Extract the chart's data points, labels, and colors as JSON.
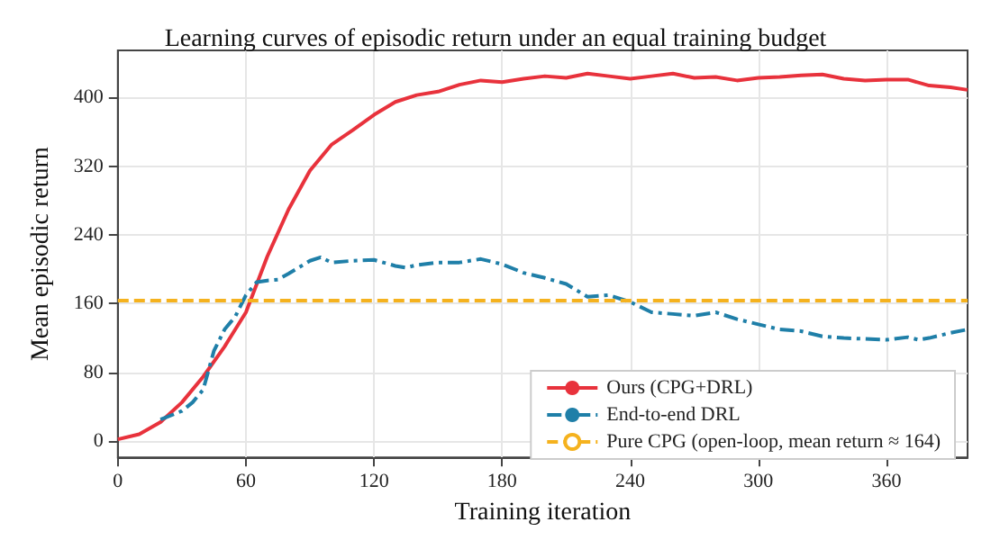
{
  "chart_data": {
    "type": "line",
    "title": "Learning curves of episodic return under an equal training budget",
    "xlabel": "Training iteration",
    "ylabel": "Mean episodic return",
    "xlim": [
      0,
      398
    ],
    "ylim": [
      -19,
      455
    ],
    "xticks": [
      0,
      60,
      120,
      180,
      240,
      300,
      360
    ],
    "yticks": [
      0,
      80,
      160,
      240,
      320,
      400
    ],
    "grid": true,
    "legend": "bottom right",
    "marker": "none",
    "series": [
      {
        "name": "Ours (CPG+DRL)",
        "color": "#e8323c",
        "line_style": "solid",
        "x": [
          0,
          10,
          20,
          30,
          40,
          50,
          60,
          70,
          80,
          90,
          100,
          110,
          120,
          130,
          140,
          150,
          160,
          170,
          180,
          190,
          200,
          210,
          220,
          230,
          240,
          250,
          260,
          270,
          280,
          290,
          300,
          310,
          320,
          330,
          340,
          350,
          360,
          370,
          380,
          390,
          398
        ],
        "values": [
          2,
          8,
          22,
          45,
          75,
          110,
          150,
          215,
          270,
          315,
          345,
          362,
          380,
          395,
          403,
          407,
          415,
          420,
          418,
          422,
          425,
          423,
          428,
          425,
          422,
          425,
          428,
          423,
          424,
          420,
          423,
          424,
          426,
          427,
          422,
          420,
          421,
          421,
          414,
          412,
          409
        ]
      },
      {
        "name": "End-to-end DRL",
        "color": "#1f7fa8",
        "line_style": "dashdot",
        "x": [
          20,
          30,
          35,
          40,
          45,
          50,
          55,
          60,
          65,
          70,
          75,
          80,
          90,
          95,
          100,
          110,
          120,
          130,
          135,
          140,
          150,
          160,
          170,
          180,
          190,
          200,
          210,
          220,
          230,
          240,
          250,
          260,
          270,
          280,
          290,
          300,
          310,
          320,
          330,
          340,
          350,
          360,
          370,
          375,
          380,
          390,
          398
        ],
        "values": [
          25,
          35,
          45,
          60,
          105,
          130,
          145,
          170,
          185,
          187,
          188,
          195,
          210,
          214,
          208,
          210,
          211,
          204,
          202,
          205,
          208,
          208,
          212,
          206,
          196,
          190,
          183,
          168,
          170,
          162,
          150,
          148,
          146,
          150,
          142,
          136,
          130,
          128,
          122,
          120,
          119,
          118,
          121,
          118,
          120,
          126,
          130
        ]
      }
    ],
    "ref_lines": [
      {
        "axis": "y",
        "value": 164,
        "label": "Pure CPG (open-loop, mean return ≈ 164)",
        "color": "#f5b21e",
        "line_style": "dashed"
      }
    ]
  }
}
